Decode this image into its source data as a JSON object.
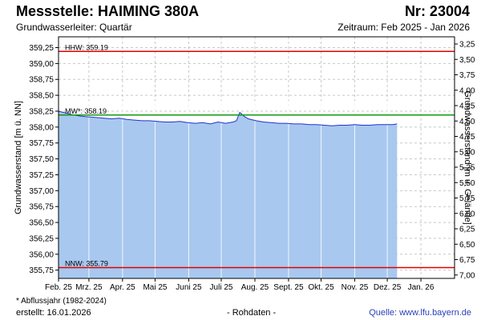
{
  "header": {
    "title": "Messstelle: HAIMING 380A",
    "station_nr": "Nr: 23004",
    "aquifer": "Grundwasserleiter: Quartär",
    "period": "Zeitraum: Feb 2025 - Jan 2026"
  },
  "footer": {
    "footnote": "* Abflussjahr (1982-2024)",
    "created": "erstellt:  16.01.2026",
    "rawdata": "- Rohdaten -",
    "source": "Quelle: www.lfu.bayern.de"
  },
  "colors": {
    "area": "#a8c8f0",
    "line": "#2233cc",
    "hhw": "#e00000",
    "nnw": "#e00000",
    "mw": "#119911",
    "grid": "#c8c8c8"
  },
  "chart_data": {
    "type": "area",
    "ylabel": "Grundwasserstand [m ü. NN]",
    "ylabel_right": "Grundwasserstand [m u. Gelände]",
    "ylim": [
      355.62,
      359.42
    ],
    "yticks": [
      "359,25",
      "359,00",
      "358,75",
      "358,50",
      "358,25",
      "358,00",
      "357,75",
      "357,50",
      "357,25",
      "357,00",
      "356,75",
      "356,50",
      "356,25",
      "356,00",
      "355,75"
    ],
    "yticks_right": [
      "3,25",
      "3,50",
      "3,75",
      "4,00",
      "4,25",
      "4,50",
      "4,75",
      "5,00",
      "5,25",
      "5,50",
      "5,75",
      "6,00",
      "6,25",
      "6,50",
      "6,75",
      "7,00"
    ],
    "months": [
      "Feb. 25",
      "Mrz. 25",
      "Apr. 25",
      "Mai 25",
      "Juni 25",
      "Juli 25",
      "Aug. 25",
      "Sept. 25",
      "Okt. 25",
      "Nov. 25",
      "Dez. 25",
      "Jan. 26"
    ],
    "reference_lines": [
      {
        "label": "HHW: 359.19",
        "value": 359.19,
        "color": "#e00000"
      },
      {
        "label": "MW*: 358.19",
        "value": 358.19,
        "color": "#119911"
      },
      {
        "label": "NNW: 355.79",
        "value": 355.79,
        "color": "#e00000"
      }
    ],
    "x": [
      "2025-02-01",
      "2025-02-08",
      "2025-02-15",
      "2025-02-22",
      "2025-03-01",
      "2025-03-08",
      "2025-03-15",
      "2025-03-22",
      "2025-03-29",
      "2025-04-05",
      "2025-04-12",
      "2025-04-19",
      "2025-04-26",
      "2025-05-03",
      "2025-05-10",
      "2025-05-17",
      "2025-05-24",
      "2025-05-31",
      "2025-06-07",
      "2025-06-14",
      "2025-06-21",
      "2025-06-28",
      "2025-07-05",
      "2025-07-12",
      "2025-07-15",
      "2025-07-18",
      "2025-07-19",
      "2025-07-22",
      "2025-07-26",
      "2025-08-02",
      "2025-08-09",
      "2025-08-16",
      "2025-08-23",
      "2025-08-30",
      "2025-09-06",
      "2025-09-13",
      "2025-09-20",
      "2025-09-27",
      "2025-10-04",
      "2025-10-11",
      "2025-10-18",
      "2025-10-25",
      "2025-11-01",
      "2025-11-08",
      "2025-11-15",
      "2025-11-22",
      "2025-11-29",
      "2025-12-06",
      "2025-12-10"
    ],
    "values": [
      358.25,
      358.22,
      358.19,
      358.17,
      358.16,
      358.15,
      358.14,
      358.13,
      358.14,
      358.12,
      358.11,
      358.1,
      358.1,
      358.09,
      358.08,
      358.08,
      358.09,
      358.07,
      358.06,
      358.07,
      358.05,
      358.08,
      358.06,
      358.08,
      358.1,
      358.23,
      358.22,
      358.17,
      358.13,
      358.1,
      358.08,
      358.07,
      358.06,
      358.06,
      358.05,
      358.05,
      358.04,
      358.04,
      358.03,
      358.02,
      358.03,
      358.03,
      358.04,
      358.03,
      358.03,
      358.04,
      358.04,
      358.04,
      358.05
    ]
  }
}
